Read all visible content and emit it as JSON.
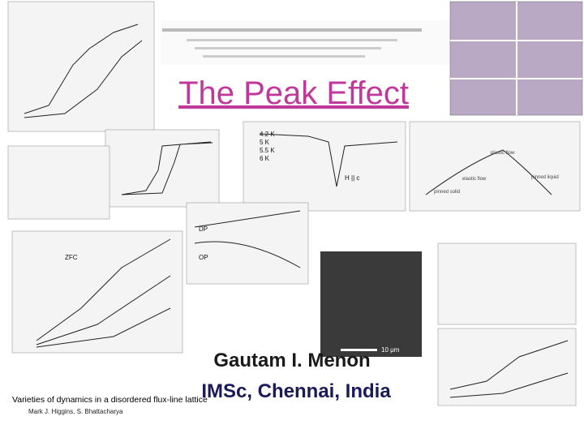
{
  "title": "The Peak Effect",
  "author": "Gautam I. Menon",
  "affiliation": "IMSc, Chennai, India",
  "clippings": {
    "paper_title": "Varieties of dynamics in a disordered flux-line lattice",
    "paper_authors": "Mark J. Higgins, S. Bhattacharya",
    "temperatures": [
      "4.2 K",
      "5 K",
      "5.5 K",
      "6 K"
    ],
    "field_direction": "H || c",
    "phase_labels": [
      "pinned solid",
      "elastic flow",
      "plastic flow",
      "pinned liquid"
    ],
    "dp_label": "DP",
    "op_label": "OP",
    "zfc_label": "ZFC",
    "scale_bar": "10 μm"
  }
}
